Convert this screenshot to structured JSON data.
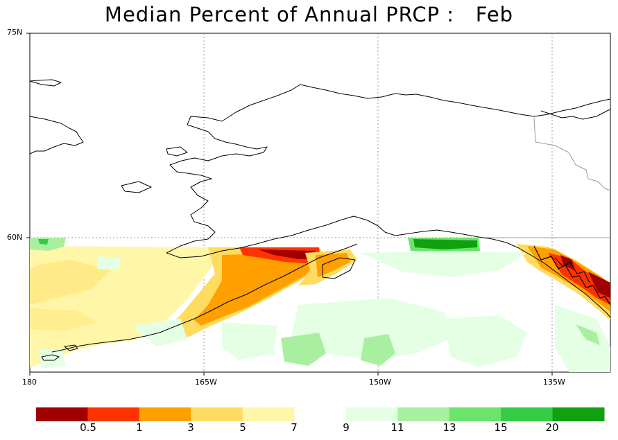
{
  "title": "Median Percent of Annual PRCP :   Feb",
  "lat_labels": [
    "75N",
    "60N"
  ],
  "lon_labels": [
    "180",
    "165W",
    "150W",
    "135W"
  ],
  "colorbar": {
    "dry": {
      "colors": [
        "#a00000",
        "#ff3300",
        "#ffa000",
        "#ffdc60",
        "#fff6a8"
      ],
      "tick_labels": [
        "0.5",
        "1",
        "3",
        "5",
        "7"
      ]
    },
    "wet": {
      "colors": [
        "#e4ffe4",
        "#a8f0a0",
        "#6ce46c",
        "#33cc44",
        "#10a010"
      ],
      "tick_labels": [
        "9",
        "11",
        "13",
        "15",
        "20"
      ]
    }
  },
  "colors": {
    "coastline": "#000000",
    "border": "#999999",
    "gridline": "#999999"
  }
}
